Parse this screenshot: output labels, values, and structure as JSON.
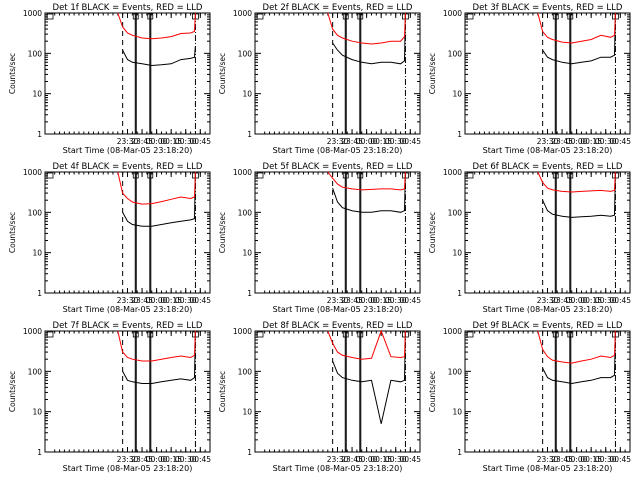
{
  "figure": {
    "xlabel": "Start Time (08-Mar-05 23:18:20)",
    "ylabel": "Counts/sec",
    "time_ticks": [
      "23:30",
      "23:45",
      "00:00",
      "00:15",
      "00:30",
      "00:45"
    ],
    "y_ticks": [
      "1",
      "10",
      "100",
      "1000"
    ],
    "colors": {
      "events": "#000000",
      "lld": "#ff0000"
    },
    "dashed_marker_times": [
      "23:25",
      "01:00"
    ],
    "solid_box_marker_time_pairs": [
      [
        "23:38",
        "23:39"
      ],
      [
        "23:53",
        "23:54"
      ]
    ],
    "dashdot_marker_time": "00:40"
  },
  "chart_data": [
    {
      "type": "line",
      "title": "Det 1f BLACK = Events, RED = LLD",
      "xlabel": "Start Time (08-Mar-05 23:18:20)",
      "ylabel": "Counts/sec",
      "ylim": [
        1,
        1000
      ],
      "yscale": "log",
      "grid": false,
      "x": [
        "23:20",
        "23:25",
        "23:30",
        "23:35",
        "23:45",
        "23:55",
        "00:05",
        "00:15",
        "00:25",
        "00:35",
        "00:39",
        "00:40"
      ],
      "series": [
        {
          "name": "Events",
          "values": [
            null,
            120,
            70,
            60,
            55,
            50,
            52,
            55,
            70,
            75,
            80,
            150
          ]
        },
        {
          "name": "LLD",
          "values": [
            1000,
            450,
            320,
            280,
            240,
            230,
            240,
            260,
            310,
            320,
            350,
            1000
          ]
        }
      ]
    },
    {
      "type": "line",
      "title": "Det 2f BLACK = Events, RED = LLD",
      "xlabel": "Start Time (08-Mar-05 23:18:20)",
      "ylabel": "Counts/sec",
      "ylim": [
        1,
        1000
      ],
      "yscale": "log",
      "grid": false,
      "x": [
        "23:20",
        "23:25",
        "23:30",
        "23:35",
        "23:45",
        "23:55",
        "00:05",
        "00:15",
        "00:25",
        "00:35",
        "00:39",
        "00:40"
      ],
      "series": [
        {
          "name": "Events",
          "values": [
            null,
            180,
            120,
            90,
            70,
            60,
            55,
            60,
            60,
            55,
            65,
            1000
          ]
        },
        {
          "name": "LLD",
          "values": [
            1000,
            400,
            280,
            240,
            200,
            180,
            170,
            180,
            200,
            200,
            260,
            1000
          ]
        }
      ]
    },
    {
      "type": "line",
      "title": "Det 3f BLACK = Events, RED = LLD",
      "xlabel": "Start Time (08-Mar-05 23:18:20)",
      "ylabel": "Counts/sec",
      "ylim": [
        1,
        1000
      ],
      "yscale": "log",
      "grid": false,
      "x": [
        "23:20",
        "23:25",
        "23:30",
        "23:35",
        "23:45",
        "23:55",
        "00:05",
        "00:15",
        "00:25",
        "00:35",
        "00:39",
        "00:40"
      ],
      "series": [
        {
          "name": "Events",
          "values": [
            null,
            120,
            80,
            70,
            60,
            55,
            60,
            65,
            80,
            80,
            90,
            1000
          ]
        },
        {
          "name": "LLD",
          "values": [
            1000,
            350,
            250,
            220,
            190,
            180,
            200,
            220,
            280,
            250,
            280,
            1000
          ]
        }
      ]
    },
    {
      "type": "line",
      "title": "Det 4f BLACK = Events, RED = LLD",
      "xlabel": "Start Time (08-Mar-05 23:18:20)",
      "ylabel": "Counts/sec",
      "ylim": [
        1,
        1000
      ],
      "yscale": "log",
      "grid": false,
      "x": [
        "23:20",
        "23:25",
        "23:30",
        "23:35",
        "23:45",
        "23:55",
        "00:05",
        "00:15",
        "00:25",
        "00:35",
        "00:39",
        "00:40"
      ],
      "series": [
        {
          "name": "Events",
          "values": [
            null,
            100,
            60,
            50,
            45,
            45,
            50,
            55,
            60,
            65,
            70,
            1000
          ]
        },
        {
          "name": "LLD",
          "values": [
            1000,
            300,
            220,
            180,
            160,
            165,
            185,
            210,
            240,
            220,
            240,
            1000
          ]
        }
      ]
    },
    {
      "type": "line",
      "title": "Det 5f BLACK = Events, RED = LLD",
      "xlabel": "Start Time (08-Mar-05 23:18:20)",
      "ylabel": "Counts/sec",
      "ylim": [
        1,
        1000
      ],
      "yscale": "log",
      "grid": false,
      "x": [
        "23:20",
        "23:25",
        "23:30",
        "23:35",
        "23:45",
        "23:55",
        "00:05",
        "00:15",
        "00:25",
        "00:35",
        "00:39",
        "00:40"
      ],
      "series": [
        {
          "name": "Events",
          "values": [
            null,
            400,
            180,
            130,
            110,
            100,
            100,
            110,
            110,
            100,
            110,
            1000
          ]
        },
        {
          "name": "LLD",
          "values": [
            1000,
            700,
            500,
            420,
            380,
            360,
            370,
            380,
            380,
            360,
            380,
            1000
          ]
        }
      ]
    },
    {
      "type": "line",
      "title": "Det 6f BLACK = Events, RED = LLD",
      "xlabel": "Start Time (08-Mar-05 23:18:20)",
      "ylabel": "Counts/sec",
      "ylim": [
        1,
        1000
      ],
      "yscale": "log",
      "grid": false,
      "x": [
        "23:20",
        "23:25",
        "23:30",
        "23:35",
        "23:45",
        "23:55",
        "00:05",
        "00:15",
        "00:25",
        "00:35",
        "00:39",
        "00:40"
      ],
      "series": [
        {
          "name": "Events",
          "values": [
            null,
            200,
            110,
            90,
            80,
            75,
            78,
            80,
            85,
            80,
            85,
            1000
          ]
        },
        {
          "name": "LLD",
          "values": [
            1000,
            550,
            400,
            360,
            330,
            320,
            330,
            340,
            350,
            330,
            350,
            1000
          ]
        }
      ]
    },
    {
      "type": "line",
      "title": "Det 7f BLACK = Events, RED = LLD",
      "xlabel": "Start Time (08-Mar-05 23:18:20)",
      "ylabel": "Counts/sec",
      "ylim": [
        1,
        1000
      ],
      "yscale": "log",
      "grid": false,
      "x": [
        "23:20",
        "23:25",
        "23:30",
        "23:35",
        "23:45",
        "23:55",
        "00:05",
        "00:15",
        "00:25",
        "00:35",
        "00:39",
        "00:40"
      ],
      "series": [
        {
          "name": "Events",
          "values": [
            null,
            100,
            60,
            55,
            50,
            50,
            55,
            60,
            65,
            60,
            70,
            1000
          ]
        },
        {
          "name": "LLD",
          "values": [
            1000,
            300,
            220,
            200,
            180,
            180,
            200,
            220,
            240,
            220,
            250,
            1000
          ]
        }
      ]
    },
    {
      "type": "line",
      "title": "Det 8f BLACK = Events, RED = LLD",
      "xlabel": "Start Time (08-Mar-05 23:18:20)",
      "ylabel": "Counts/sec",
      "ylim": [
        1,
        1000
      ],
      "yscale": "log",
      "grid": false,
      "x": [
        "23:20",
        "23:25",
        "23:30",
        "23:35",
        "23:45",
        "23:55",
        "00:05",
        "00:15",
        "00:25",
        "00:35",
        "00:39",
        "00:40"
      ],
      "series": [
        {
          "name": "Events",
          "values": [
            null,
            180,
            90,
            70,
            60,
            55,
            60,
            5,
            60,
            55,
            60,
            1000
          ]
        },
        {
          "name": "LLD",
          "values": [
            1000,
            500,
            300,
            250,
            220,
            200,
            210,
            1000,
            230,
            220,
            230,
            1000
          ]
        }
      ]
    },
    {
      "type": "line",
      "title": "Det 9f BLACK = Events, RED = LLD",
      "xlabel": "Start Time (08-Mar-05 23:18:20)",
      "ylabel": "Counts/sec",
      "ylim": [
        1,
        1000
      ],
      "yscale": "log",
      "grid": false,
      "x": [
        "23:20",
        "23:25",
        "23:30",
        "23:35",
        "23:45",
        "23:55",
        "00:05",
        "00:15",
        "00:25",
        "00:35",
        "00:39",
        "00:40"
      ],
      "series": [
        {
          "name": "Events",
          "values": [
            null,
            120,
            70,
            60,
            55,
            50,
            55,
            60,
            70,
            70,
            80,
            1000
          ]
        },
        {
          "name": "LLD",
          "values": [
            1000,
            350,
            230,
            190,
            170,
            160,
            180,
            200,
            240,
            220,
            250,
            1000
          ]
        }
      ]
    }
  ]
}
